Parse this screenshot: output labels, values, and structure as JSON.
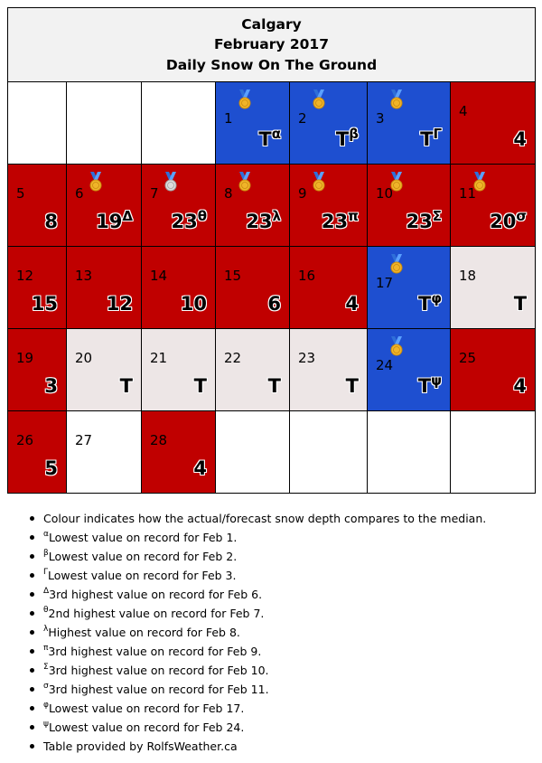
{
  "header": {
    "city": "Calgary",
    "month": "February 2017",
    "subtitle": "Daily Snow On The Ground"
  },
  "colors": {
    "above_median": "#c00000",
    "below_median": "#1e4fd0",
    "trace": "#ede6e6",
    "blank": "#ffffff"
  },
  "icons": {
    "record_low": "gold-medal-icon",
    "record_high": "gold-medal-icon",
    "second_highest": "silver-medal-icon",
    "third_highest": "gold-medal-icon"
  },
  "weeks": [
    [
      {
        "blank": true
      },
      {
        "blank": true
      },
      {
        "blank": true
      },
      {
        "day": "1",
        "value": "T",
        "sup": "α",
        "color": "blue",
        "medal": "gold"
      },
      {
        "day": "2",
        "value": "T",
        "sup": "β",
        "color": "blue",
        "medal": "gold"
      },
      {
        "day": "3",
        "value": "T",
        "sup": "Γ",
        "color": "blue",
        "medal": "gold"
      },
      {
        "day": "4",
        "value": "4",
        "color": "red"
      }
    ],
    [
      {
        "day": "5",
        "value": "8",
        "color": "red"
      },
      {
        "day": "6",
        "value": "19",
        "sup": "Δ",
        "color": "red",
        "medal": "gold"
      },
      {
        "day": "7",
        "value": "23",
        "sup": "θ",
        "color": "red",
        "medal": "silver"
      },
      {
        "day": "8",
        "value": "23",
        "sup": "λ",
        "color": "red",
        "medal": "gold"
      },
      {
        "day": "9",
        "value": "23",
        "sup": "π",
        "color": "red",
        "medal": "gold"
      },
      {
        "day": "10",
        "value": "23",
        "sup": "Σ",
        "color": "red",
        "medal": "gold"
      },
      {
        "day": "11",
        "value": "20",
        "sup": "σ",
        "color": "red",
        "medal": "gold"
      }
    ],
    [
      {
        "day": "12",
        "value": "15",
        "color": "red"
      },
      {
        "day": "13",
        "value": "12",
        "color": "red"
      },
      {
        "day": "14",
        "value": "10",
        "color": "red"
      },
      {
        "day": "15",
        "value": "6",
        "color": "red"
      },
      {
        "day": "16",
        "value": "4",
        "color": "red"
      },
      {
        "day": "17",
        "value": "T",
        "sup": "φ",
        "color": "blue",
        "medal": "gold"
      },
      {
        "day": "18",
        "value": "T",
        "color": "grey"
      }
    ],
    [
      {
        "day": "19",
        "value": "3",
        "color": "red"
      },
      {
        "day": "20",
        "value": "T",
        "color": "grey"
      },
      {
        "day": "21",
        "value": "T",
        "color": "grey"
      },
      {
        "day": "22",
        "value": "T",
        "color": "grey"
      },
      {
        "day": "23",
        "value": "T",
        "color": "grey"
      },
      {
        "day": "24",
        "value": "T",
        "sup": "ψ",
        "color": "blue",
        "medal": "gold"
      },
      {
        "day": "25",
        "value": "4",
        "color": "red"
      }
    ],
    [
      {
        "day": "26",
        "value": "5",
        "color": "red"
      },
      {
        "day": "27",
        "color": "empty"
      },
      {
        "day": "28",
        "value": "4",
        "color": "red"
      },
      {
        "blank": true
      },
      {
        "blank": true
      },
      {
        "blank": true
      },
      {
        "blank": true
      }
    ]
  ],
  "notes": [
    {
      "sup": "",
      "text": "Colour indicates how the actual/forecast snow depth compares to the median."
    },
    {
      "sup": "α",
      "text": "Lowest value on record for Feb 1."
    },
    {
      "sup": "β",
      "text": "Lowest value on record for Feb 2."
    },
    {
      "sup": "Γ",
      "text": "Lowest value on record for Feb 3."
    },
    {
      "sup": "Δ",
      "text": "3rd highest value on record for Feb 6."
    },
    {
      "sup": "θ",
      "text": "2nd highest value on record for Feb 7."
    },
    {
      "sup": "λ",
      "text": "Highest value on record for Feb 8."
    },
    {
      "sup": "π",
      "text": "3rd highest value on record for Feb 9."
    },
    {
      "sup": "Σ",
      "text": "3rd highest value on record for Feb 10."
    },
    {
      "sup": "σ",
      "text": "3rd highest value on record for Feb 11."
    },
    {
      "sup": "φ",
      "text": "Lowest value on record for Feb 17."
    },
    {
      "sup": "ψ",
      "text": "Lowest value on record for Feb 24."
    },
    {
      "sup": "",
      "text": "Table provided by RolfsWeather.ca"
    }
  ]
}
